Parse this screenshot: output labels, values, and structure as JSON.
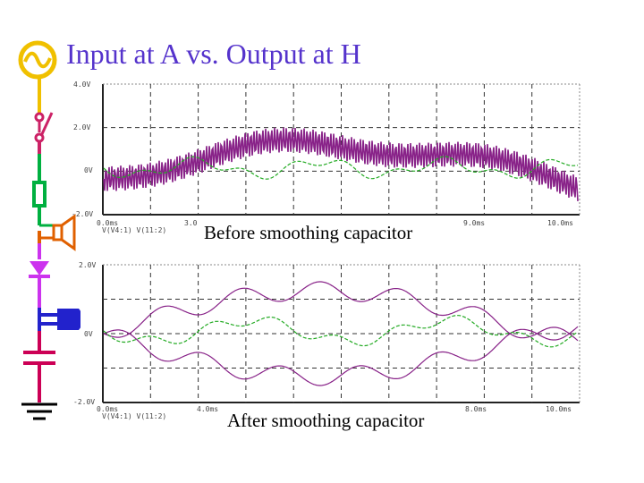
{
  "title": "Input at A vs. Output at H",
  "captions": {
    "before": "Before smoothing capacitor",
    "after": "After smoothing capacitor"
  },
  "colors": {
    "title": "#5533cc",
    "ac_source": "#f0c000",
    "switch": "#cc2266",
    "wire_green": "#00b040",
    "wire_orange": "#e06000",
    "diode": "#cc33ee",
    "relay": "#2222cc",
    "capacitor": "#cc0055",
    "trace_input": "#882288",
    "trace_output": "#22aa22"
  },
  "circuit_components": [
    "ac-source-icon",
    "switch-icon",
    "resistor-icon",
    "speaker-icon",
    "diode-icon",
    "relay-icon",
    "capacitor-icon",
    "ground-icon"
  ],
  "scope_before": {
    "y_ticks": [
      "4.0V",
      "2.0V",
      "0V",
      "-2.0V"
    ],
    "x_ticks": [
      "0.0ms",
      "3.0",
      "9.0ms",
      "10.0ms"
    ],
    "legend": "V(V4:1)  V(11:2)"
  },
  "scope_after": {
    "y_ticks": [
      "2.0V",
      "0V",
      "-2.0V"
    ],
    "x_ticks": [
      "0.0ms",
      "4.0ms",
      "8.0ms",
      "10.0ms"
    ],
    "legend": "V(V4:1)  V(11:2)"
  }
}
